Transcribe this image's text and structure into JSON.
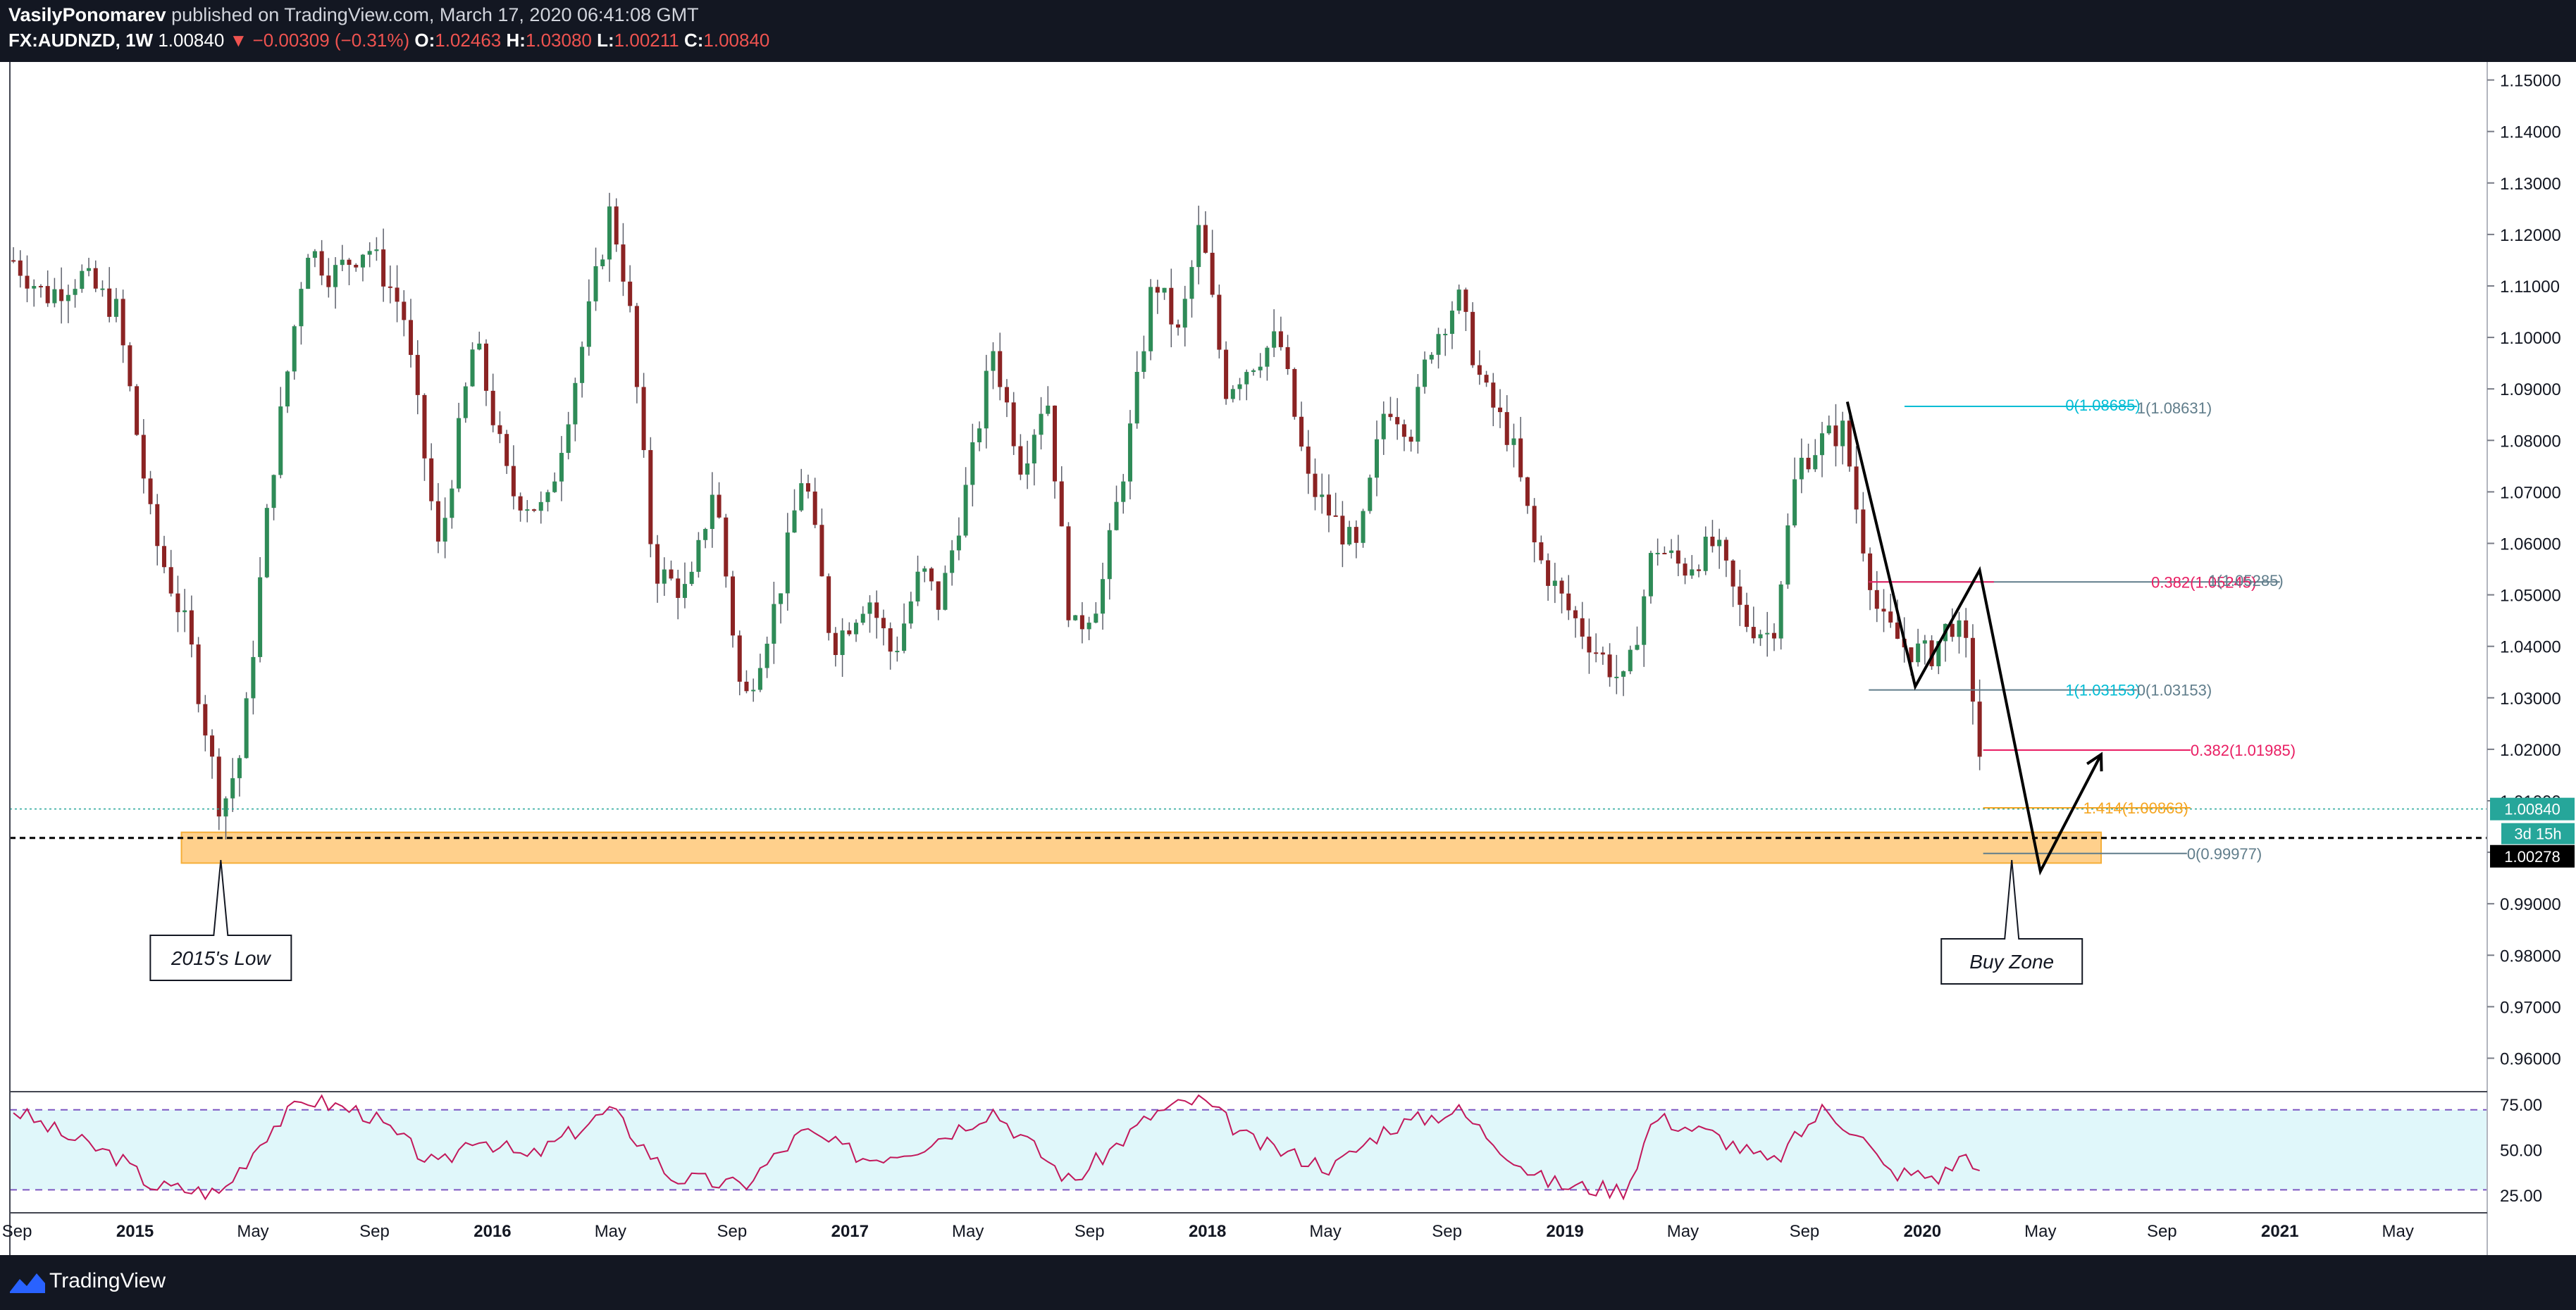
{
  "header": {
    "author": "VasilyPonomarev",
    "published_text": "published on TradingView.com, March 17, 2020 06:41:08 GMT",
    "symbol": "FX:AUDNZD, 1W",
    "last": "1.00840",
    "change": "▼ −0.00309 (−0.31%)",
    "o_label": "O:",
    "o_value": "1.02463",
    "h_label": "H:",
    "h_value": "1.03080",
    "l_label": "L:",
    "l_value": "1.00211",
    "c_label": "C:",
    "c_value": "1.00840"
  },
  "footer": {
    "brand": "TradingView"
  },
  "colors": {
    "up": "#26a69a",
    "down": "#8b1a1a",
    "up_candle": "#2e8b57",
    "down_candle": "#8b2323",
    "zone": "#ffcc80",
    "zone_border": "#f5a623",
    "fib_cyan": "#00bcd4",
    "fib_magenta": "#e91e63",
    "fib_teal": "#607d8b",
    "fib_orange": "#f5a623",
    "rsi_line": "#c2185b",
    "rsi_band": "#e0f7fa",
    "price_badge": "#26a69a"
  },
  "chart_data": {
    "type": "candlestick",
    "timeframe": "1W",
    "y_ticks": [
      "1.15000",
      "1.14000",
      "1.13000",
      "1.12000",
      "1.11000",
      "1.10000",
      "1.09000",
      "1.08000",
      "1.07000",
      "1.06000",
      "1.05000",
      "1.04000",
      "1.03000",
      "1.02000",
      "1.01000",
      "1.00000",
      "0.99000",
      "0.98000",
      "0.97000",
      "0.96000"
    ],
    "ylim": [
      0.9535,
      1.1535
    ],
    "x_ticks": [
      {
        "label": "Sep",
        "t": 2014.67,
        "bold": false
      },
      {
        "label": "2015",
        "t": 2015.0,
        "bold": true
      },
      {
        "label": "May",
        "t": 2015.33,
        "bold": false
      },
      {
        "label": "Sep",
        "t": 2015.67,
        "bold": false
      },
      {
        "label": "2016",
        "t": 2016.0,
        "bold": true
      },
      {
        "label": "May",
        "t": 2016.33,
        "bold": false
      },
      {
        "label": "Sep",
        "t": 2016.67,
        "bold": false
      },
      {
        "label": "2017",
        "t": 2017.0,
        "bold": true
      },
      {
        "label": "May",
        "t": 2017.33,
        "bold": false
      },
      {
        "label": "Sep",
        "t": 2017.67,
        "bold": false
      },
      {
        "label": "2018",
        "t": 2018.0,
        "bold": true
      },
      {
        "label": "May",
        "t": 2018.33,
        "bold": false
      },
      {
        "label": "Sep",
        "t": 2018.67,
        "bold": false
      },
      {
        "label": "2019",
        "t": 2019.0,
        "bold": true
      },
      {
        "label": "May",
        "t": 2019.33,
        "bold": false
      },
      {
        "label": "Sep",
        "t": 2019.67,
        "bold": false
      },
      {
        "label": "2020",
        "t": 2020.0,
        "bold": true
      },
      {
        "label": "May",
        "t": 2020.33,
        "bold": false
      },
      {
        "label": "Sep",
        "t": 2020.67,
        "bold": false
      },
      {
        "label": "2021",
        "t": 2021.0,
        "bold": true
      },
      {
        "label": "May",
        "t": 2021.33,
        "bold": false
      }
    ],
    "xlim": [
      2014.65,
      2021.58
    ],
    "anchors": [
      {
        "t": 2014.66,
        "p": 1.115
      },
      {
        "t": 2014.75,
        "p": 1.108
      },
      {
        "t": 2014.85,
        "p": 1.112
      },
      {
        "t": 2014.95,
        "p": 1.105
      },
      {
        "t": 2015.05,
        "p": 1.062
      },
      {
        "t": 2015.15,
        "p": 1.042
      },
      {
        "t": 2015.24,
        "p": 1.008
      },
      {
        "t": 2015.3,
        "p": 1.02
      },
      {
        "t": 2015.38,
        "p": 1.072
      },
      {
        "t": 2015.48,
        "p": 1.118
      },
      {
        "t": 2015.55,
        "p": 1.112
      },
      {
        "t": 2015.65,
        "p": 1.118
      },
      {
        "t": 2015.75,
        "p": 1.105
      },
      {
        "t": 2015.85,
        "p": 1.058
      },
      {
        "t": 2015.95,
        "p": 1.1
      },
      {
        "t": 2016.05,
        "p": 1.07
      },
      {
        "t": 2016.15,
        "p": 1.066
      },
      {
        "t": 2016.25,
        "p": 1.098
      },
      {
        "t": 2016.33,
        "p": 1.125
      },
      {
        "t": 2016.38,
        "p": 1.108
      },
      {
        "t": 2016.45,
        "p": 1.055
      },
      {
        "t": 2016.55,
        "p": 1.05
      },
      {
        "t": 2016.62,
        "p": 1.072
      },
      {
        "t": 2016.7,
        "p": 1.028
      },
      {
        "t": 2016.8,
        "p": 1.05
      },
      {
        "t": 2016.87,
        "p": 1.075
      },
      {
        "t": 2016.95,
        "p": 1.04
      },
      {
        "t": 2017.05,
        "p": 1.05
      },
      {
        "t": 2017.12,
        "p": 1.038
      },
      {
        "t": 2017.2,
        "p": 1.055
      },
      {
        "t": 2017.25,
        "p": 1.048
      },
      {
        "t": 2017.33,
        "p": 1.072
      },
      {
        "t": 2017.4,
        "p": 1.098
      },
      {
        "t": 2017.48,
        "p": 1.075
      },
      {
        "t": 2017.55,
        "p": 1.09
      },
      {
        "t": 2017.62,
        "p": 1.042
      },
      {
        "t": 2017.7,
        "p": 1.05
      },
      {
        "t": 2017.78,
        "p": 1.08
      },
      {
        "t": 2017.85,
        "p": 1.112
      },
      {
        "t": 2017.92,
        "p": 1.1
      },
      {
        "t": 2017.98,
        "p": 1.122
      },
      {
        "t": 2018.05,
        "p": 1.09
      },
      {
        "t": 2018.12,
        "p": 1.095
      },
      {
        "t": 2018.2,
        "p": 1.1
      },
      {
        "t": 2018.28,
        "p": 1.072
      },
      {
        "t": 2018.35,
        "p": 1.065
      },
      {
        "t": 2018.42,
        "p": 1.058
      },
      {
        "t": 2018.5,
        "p": 1.088
      },
      {
        "t": 2018.57,
        "p": 1.082
      },
      {
        "t": 2018.62,
        "p": 1.098
      },
      {
        "t": 2018.7,
        "p": 1.108
      },
      {
        "t": 2018.77,
        "p": 1.09
      },
      {
        "t": 2018.85,
        "p": 1.08
      },
      {
        "t": 2018.92,
        "p": 1.058
      },
      {
        "t": 2019.0,
        "p": 1.048
      },
      {
        "t": 2019.08,
        "p": 1.04
      },
      {
        "t": 2019.17,
        "p": 1.032
      },
      {
        "t": 2019.25,
        "p": 1.06
      },
      {
        "t": 2019.33,
        "p": 1.055
      },
      {
        "t": 2019.42,
        "p": 1.06
      },
      {
        "t": 2019.5,
        "p": 1.045
      },
      {
        "t": 2019.58,
        "p": 1.042
      },
      {
        "t": 2019.65,
        "p": 1.075
      },
      {
        "t": 2019.72,
        "p": 1.08
      },
      {
        "t": 2019.78,
        "p": 1.082
      },
      {
        "t": 2019.82,
        "p": 1.065
      },
      {
        "t": 2019.88,
        "p": 1.045
      },
      {
        "t": 2019.95,
        "p": 1.04
      },
      {
        "t": 2020.02,
        "p": 1.038
      },
      {
        "t": 2020.08,
        "p": 1.045
      },
      {
        "t": 2020.12,
        "p": 1.04
      },
      {
        "t": 2020.155,
        "p": 1.0246
      },
      {
        "t": 2020.17,
        "p": 1.0084
      }
    ],
    "rsi": {
      "levels": [
        "75.00",
        "50.00",
        "25.00"
      ],
      "ylim": [
        20,
        82
      ],
      "upper_band": 72,
      "lower_band": 28,
      "anchors": [
        {
          "t": 2014.66,
          "v": 72
        },
        {
          "t": 2014.8,
          "v": 58
        },
        {
          "t": 2014.95,
          "v": 46
        },
        {
          "t": 2015.05,
          "v": 30
        },
        {
          "t": 2015.24,
          "v": 26
        },
        {
          "t": 2015.38,
          "v": 62
        },
        {
          "t": 2015.48,
          "v": 78
        },
        {
          "t": 2015.65,
          "v": 70
        },
        {
          "t": 2015.85,
          "v": 40
        },
        {
          "t": 2015.95,
          "v": 58
        },
        {
          "t": 2016.1,
          "v": 45
        },
        {
          "t": 2016.33,
          "v": 72
        },
        {
          "t": 2016.5,
          "v": 35
        },
        {
          "t": 2016.7,
          "v": 30
        },
        {
          "t": 2016.87,
          "v": 60
        },
        {
          "t": 2017.05,
          "v": 45
        },
        {
          "t": 2017.2,
          "v": 52
        },
        {
          "t": 2017.4,
          "v": 72
        },
        {
          "t": 2017.62,
          "v": 32
        },
        {
          "t": 2017.85,
          "v": 70
        },
        {
          "t": 2017.98,
          "v": 78
        },
        {
          "t": 2018.12,
          "v": 55
        },
        {
          "t": 2018.35,
          "v": 40
        },
        {
          "t": 2018.5,
          "v": 62
        },
        {
          "t": 2018.7,
          "v": 72
        },
        {
          "t": 2018.92,
          "v": 35
        },
        {
          "t": 2019.0,
          "v": 30
        },
        {
          "t": 2019.17,
          "v": 28
        },
        {
          "t": 2019.25,
          "v": 68
        },
        {
          "t": 2019.42,
          "v": 58
        },
        {
          "t": 2019.58,
          "v": 42
        },
        {
          "t": 2019.72,
          "v": 72
        },
        {
          "t": 2019.82,
          "v": 60
        },
        {
          "t": 2019.9,
          "v": 38
        },
        {
          "t": 2020.05,
          "v": 35
        },
        {
          "t": 2020.12,
          "v": 48
        },
        {
          "t": 2020.155,
          "v": 42
        },
        {
          "t": 2020.17,
          "v": 26
        }
      ]
    },
    "price_badges": {
      "last": "1.00840",
      "countdown": "3d 15h",
      "cursor": "1.00278"
    },
    "last_price": 1.0084,
    "cursor_price": 1.00278,
    "zone": {
      "t0": 2015.13,
      "t1": 2020.5,
      "p_top": 1.00388,
      "p_bottom": 0.9979
    },
    "fib_labels": [
      {
        "text": "0(1.08685)",
        "t": 2020.4,
        "p": 1.08685,
        "color": "cyan"
      },
      {
        "text": "1(1.08631)",
        "t": 2020.6,
        "p": 1.08631,
        "color": "teal"
      },
      {
        "text": "0.382(1.05245)",
        "t": 2020.64,
        "p": 1.05245,
        "color": "magenta"
      },
      {
        "text": "1(1.05285)",
        "t": 2020.8,
        "p": 1.05285,
        "color": "teal"
      },
      {
        "text": "1(1.03153)",
        "t": 2020.4,
        "p": 1.03153,
        "color": "cyan"
      },
      {
        "text": "0(1.03153)",
        "t": 2020.6,
        "p": 1.03153,
        "color": "teal"
      },
      {
        "text": "0.382(1.01985)",
        "t": 2020.75,
        "p": 1.01985,
        "color": "magenta"
      },
      {
        "text": "1.414(1.00863)",
        "t": 2020.45,
        "p": 1.00863,
        "color": "orange"
      },
      {
        "text": "0(0.99977)",
        "t": 2020.74,
        "p": 0.99977,
        "color": "teal"
      }
    ],
    "annotations": [
      {
        "text": "2015's Low",
        "t": 2015.24,
        "p": 0.9795
      },
      {
        "text": "Buy Zone",
        "t": 2020.25,
        "p": 0.9788
      }
    ]
  }
}
